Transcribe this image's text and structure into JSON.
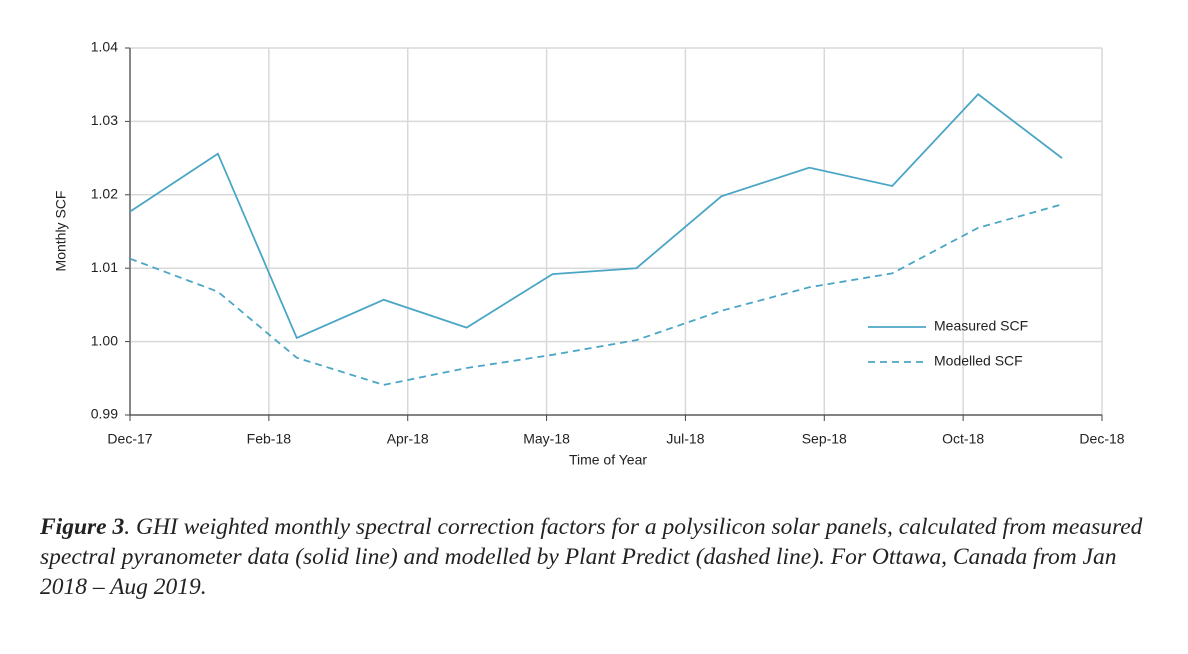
{
  "chart_data": {
    "type": "line",
    "x_label": "Time of Year",
    "y_label": "Monthly SCF",
    "xlim": [
      0,
      7
    ],
    "xticks": [
      {
        "value": 0,
        "label": "Dec-17"
      },
      {
        "value": 1,
        "label": "Feb-18"
      },
      {
        "value": 2,
        "label": "Apr-18"
      },
      {
        "value": 3,
        "label": "May-18"
      },
      {
        "value": 4,
        "label": "Jul-18"
      },
      {
        "value": 5,
        "label": "Sep-18"
      },
      {
        "value": 6,
        "label": "Oct-18"
      },
      {
        "value": 7,
        "label": "Dec-18"
      }
    ],
    "x": [
      0,
      0.633,
      1.201,
      1.827,
      2.424,
      3.043,
      3.647,
      4.259,
      4.892,
      5.489,
      6.108,
      6.712
    ],
    "ylim": [
      0.99,
      1.04
    ],
    "yticks": [
      0.99,
      {
        "value": 1.0,
        "label": "1.00"
      },
      1.01,
      1.02,
      1.03,
      1.04
    ],
    "grid": true,
    "legend": "lower right",
    "series": [
      {
        "name": "Measured SCF",
        "color": "#4ba6c6",
        "dash": false,
        "values": [
          1.0177,
          1.0256,
          1.0005,
          1.0057,
          1.0019,
          1.0092,
          1.01,
          1.0198,
          1.0237,
          1.0212,
          1.0337,
          1.025
        ]
      },
      {
        "name": "Modelled SCF",
        "color": "#4ba6c6",
        "dash": true,
        "values": [
          1.0113,
          1.0068,
          0.9978,
          0.9941,
          0.9964,
          0.9982,
          1.0002,
          1.0042,
          1.0074,
          1.0093,
          1.0155,
          1.0187
        ]
      }
    ]
  },
  "caption": {
    "label": "Figure 3",
    "text": ". GHI weighted monthly spectral correction factors for a polysilicon solar panels, calculated from measured spectral pyranometer data (solid line) and modelled by Plant Predict (dashed line). For Ottawa, Canada from Jan 2018 – Aug 2019."
  }
}
